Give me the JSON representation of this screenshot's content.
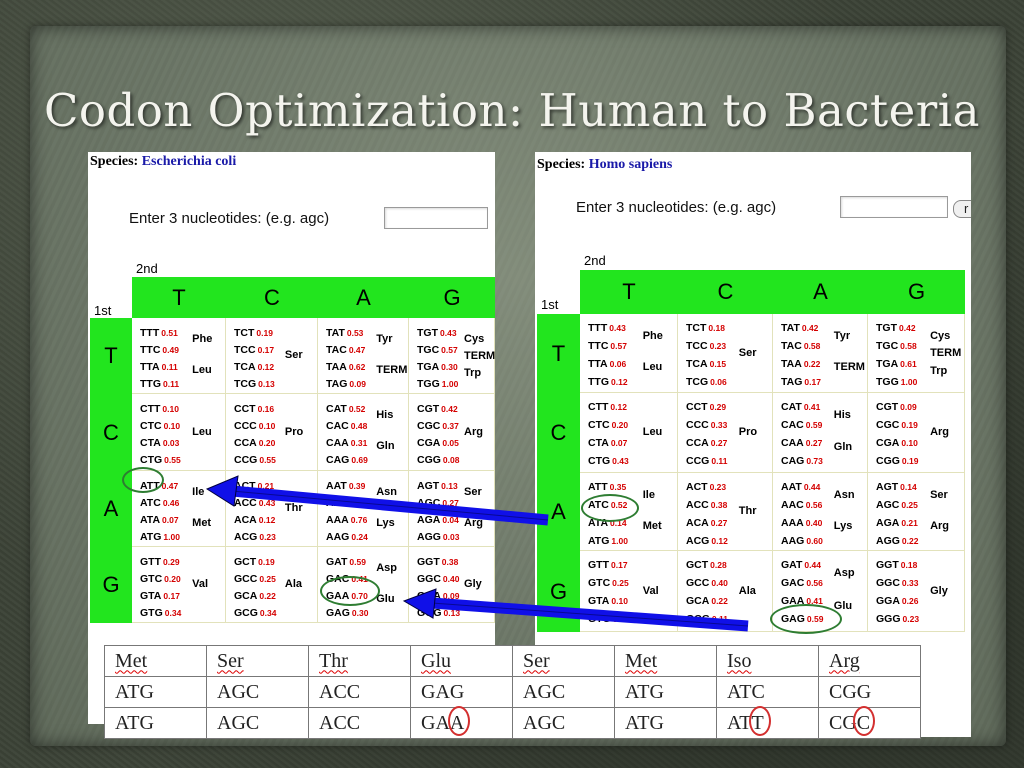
{
  "slide": {
    "title": "Codon Optimization: Human to Bacteria"
  },
  "ecoli": {
    "species_label": "Species:",
    "species_name": "Escherichia coli",
    "enter_label": "Enter 3 nucleotides:  (e.g. agc)",
    "second_label": "2nd",
    "first_label": "1st",
    "cols": [
      "T",
      "C",
      "A",
      "G"
    ],
    "rows": [
      "T",
      "C",
      "A",
      "G"
    ],
    "cells": [
      [
        {
          "codons": [
            [
              "TTT",
              "0.51"
            ],
            [
              "TTC",
              "0.49"
            ],
            [
              "TTA",
              "0.11"
            ],
            [
              "TTG",
              "0.11"
            ]
          ],
          "aa": [
            "Phe",
            "Leu"
          ]
        },
        {
          "codons": [
            [
              "TCT",
              "0.19"
            ],
            [
              "TCC",
              "0.17"
            ],
            [
              "TCA",
              "0.12"
            ],
            [
              "TCG",
              "0.13"
            ]
          ],
          "aa": [
            "Ser"
          ]
        },
        {
          "codons": [
            [
              "TAT",
              "0.53"
            ],
            [
              "TAC",
              "0.47"
            ],
            [
              "TAA",
              "0.62"
            ],
            [
              "TAG",
              "0.09"
            ]
          ],
          "aa": [
            "Tyr",
            "TERM"
          ]
        },
        {
          "codons": [
            [
              "TGT",
              "0.43"
            ],
            [
              "TGC",
              "0.57"
            ],
            [
              "TGA",
              "0.30"
            ],
            [
              "TGG",
              "1.00"
            ]
          ],
          "aa": [
            "Cys",
            "TERM",
            "Trp"
          ]
        }
      ],
      [
        {
          "codons": [
            [
              "CTT",
              "0.10"
            ],
            [
              "CTC",
              "0.10"
            ],
            [
              "CTA",
              "0.03"
            ],
            [
              "CTG",
              "0.55"
            ]
          ],
          "aa": [
            "Leu"
          ]
        },
        {
          "codons": [
            [
              "CCT",
              "0.16"
            ],
            [
              "CCC",
              "0.10"
            ],
            [
              "CCA",
              "0.20"
            ],
            [
              "CCG",
              "0.55"
            ]
          ],
          "aa": [
            "Pro"
          ]
        },
        {
          "codons": [
            [
              "CAT",
              "0.52"
            ],
            [
              "CAC",
              "0.48"
            ],
            [
              "CAA",
              "0.31"
            ],
            [
              "CAG",
              "0.69"
            ]
          ],
          "aa": [
            "His",
            "Gln"
          ]
        },
        {
          "codons": [
            [
              "CGT",
              "0.42"
            ],
            [
              "CGC",
              "0.37"
            ],
            [
              "CGA",
              "0.05"
            ],
            [
              "CGG",
              "0.08"
            ]
          ],
          "aa": [
            "Arg"
          ]
        }
      ],
      [
        {
          "codons": [
            [
              "ATT",
              "0.47"
            ],
            [
              "ATC",
              "0.46"
            ],
            [
              "ATA",
              "0.07"
            ],
            [
              "ATG",
              "1.00"
            ]
          ],
          "aa": [
            "Ile",
            "Met"
          ]
        },
        {
          "codons": [
            [
              "ACT",
              "0.21"
            ],
            [
              "ACC",
              "0.43"
            ],
            [
              "ACA",
              "0.12"
            ],
            [
              "ACG",
              "0.23"
            ]
          ],
          "aa": [
            "Thr"
          ]
        },
        {
          "codons": [
            [
              "AAT",
              "0.39"
            ],
            [
              "AAC",
              "0.61"
            ],
            [
              "AAA",
              "0.76"
            ],
            [
              "AAG",
              "0.24"
            ]
          ],
          "aa": [
            "Asn",
            "Lys"
          ]
        },
        {
          "codons": [
            [
              "AGT",
              "0.13"
            ],
            [
              "AGC",
              "0.27"
            ],
            [
              "AGA",
              "0.04"
            ],
            [
              "AGG",
              "0.03"
            ]
          ],
          "aa": [
            "Ser",
            "Arg"
          ]
        }
      ],
      [
        {
          "codons": [
            [
              "GTT",
              "0.29"
            ],
            [
              "GTC",
              "0.20"
            ],
            [
              "GTA",
              "0.17"
            ],
            [
              "GTG",
              "0.34"
            ]
          ],
          "aa": [
            "Val"
          ]
        },
        {
          "codons": [
            [
              "GCT",
              "0.19"
            ],
            [
              "GCC",
              "0.25"
            ],
            [
              "GCA",
              "0.22"
            ],
            [
              "GCG",
              "0.34"
            ]
          ],
          "aa": [
            "Ala"
          ]
        },
        {
          "codons": [
            [
              "GAT",
              "0.59"
            ],
            [
              "GAC",
              "0.41"
            ],
            [
              "GAA",
              "0.70"
            ],
            [
              "GAG",
              "0.30"
            ]
          ],
          "aa": [
            "Asp",
            "Glu"
          ]
        },
        {
          "codons": [
            [
              "GGT",
              "0.38"
            ],
            [
              "GGC",
              "0.40"
            ],
            [
              "GGA",
              "0.09"
            ],
            [
              "GGG",
              "0.13"
            ]
          ],
          "aa": [
            "Gly"
          ]
        }
      ]
    ]
  },
  "human": {
    "species_label": "Species:",
    "species_name": "Homo sapiens",
    "enter_label": "Enter 3 nucleotides:  (e.g. agc)",
    "submit_stub": "r",
    "second_label": "2nd",
    "first_label": "1st",
    "cols": [
      "T",
      "C",
      "A",
      "G"
    ],
    "rows": [
      "T",
      "C",
      "A",
      "G"
    ],
    "cells": [
      [
        {
          "codons": [
            [
              "TTT",
              "0.43"
            ],
            [
              "TTC",
              "0.57"
            ],
            [
              "TTA",
              "0.06"
            ],
            [
              "TTG",
              "0.12"
            ]
          ],
          "aa": [
            "Phe",
            "Leu"
          ]
        },
        {
          "codons": [
            [
              "TCT",
              "0.18"
            ],
            [
              "TCC",
              "0.23"
            ],
            [
              "TCA",
              "0.15"
            ],
            [
              "TCG",
              "0.06"
            ]
          ],
          "aa": [
            "Ser"
          ]
        },
        {
          "codons": [
            [
              "TAT",
              "0.42"
            ],
            [
              "TAC",
              "0.58"
            ],
            [
              "TAA",
              "0.22"
            ],
            [
              "TAG",
              "0.17"
            ]
          ],
          "aa": [
            "Tyr",
            "TERM"
          ]
        },
        {
          "codons": [
            [
              "TGT",
              "0.42"
            ],
            [
              "TGC",
              "0.58"
            ],
            [
              "TGA",
              "0.61"
            ],
            [
              "TGG",
              "1.00"
            ]
          ],
          "aa": [
            "Cys",
            "TERM",
            "Trp"
          ]
        }
      ],
      [
        {
          "codons": [
            [
              "CTT",
              "0.12"
            ],
            [
              "CTC",
              "0.20"
            ],
            [
              "CTA",
              "0.07"
            ],
            [
              "CTG",
              "0.43"
            ]
          ],
          "aa": [
            "Leu"
          ]
        },
        {
          "codons": [
            [
              "CCT",
              "0.29"
            ],
            [
              "CCC",
              "0.33"
            ],
            [
              "CCA",
              "0.27"
            ],
            [
              "CCG",
              "0.11"
            ]
          ],
          "aa": [
            "Pro"
          ]
        },
        {
          "codons": [
            [
              "CAT",
              "0.41"
            ],
            [
              "CAC",
              "0.59"
            ],
            [
              "CAA",
              "0.27"
            ],
            [
              "CAG",
              "0.73"
            ]
          ],
          "aa": [
            "His",
            "Gln"
          ]
        },
        {
          "codons": [
            [
              "CGT",
              "0.09"
            ],
            [
              "CGC",
              "0.19"
            ],
            [
              "CGA",
              "0.10"
            ],
            [
              "CGG",
              "0.19"
            ]
          ],
          "aa": [
            "Arg"
          ]
        }
      ],
      [
        {
          "codons": [
            [
              "ATT",
              "0.35"
            ],
            [
              "ATC",
              "0.52"
            ],
            [
              "ATA",
              "0.14"
            ],
            [
              "ATG",
              "1.00"
            ]
          ],
          "aa": [
            "Ile",
            "Met"
          ]
        },
        {
          "codons": [
            [
              "ACT",
              "0.23"
            ],
            [
              "ACC",
              "0.38"
            ],
            [
              "ACA",
              "0.27"
            ],
            [
              "ACG",
              "0.12"
            ]
          ],
          "aa": [
            "Thr"
          ]
        },
        {
          "codons": [
            [
              "AAT",
              "0.44"
            ],
            [
              "AAC",
              "0.56"
            ],
            [
              "AAA",
              "0.40"
            ],
            [
              "AAG",
              "0.60"
            ]
          ],
          "aa": [
            "Asn",
            "Lys"
          ]
        },
        {
          "codons": [
            [
              "AGT",
              "0.14"
            ],
            [
              "AGC",
              "0.25"
            ],
            [
              "AGA",
              "0.21"
            ],
            [
              "AGG",
              "0.22"
            ]
          ],
          "aa": [
            "Ser",
            "Arg"
          ]
        }
      ],
      [
        {
          "codons": [
            [
              "GTT",
              "0.17"
            ],
            [
              "GTC",
              "0.25"
            ],
            [
              "GTA",
              "0.10"
            ],
            [
              "GTG",
              "0.48"
            ]
          ],
          "aa": [
            "Val"
          ]
        },
        {
          "codons": [
            [
              "GCT",
              "0.28"
            ],
            [
              "GCC",
              "0.40"
            ],
            [
              "GCA",
              "0.22"
            ],
            [
              "GCG",
              "0.11"
            ]
          ],
          "aa": [
            "Ala"
          ]
        },
        {
          "codons": [
            [
              "GAT",
              "0.44"
            ],
            [
              "GAC",
              "0.56"
            ],
            [
              "GAA",
              "0.41"
            ],
            [
              "GAG",
              "0.59"
            ]
          ],
          "aa": [
            "Asp",
            "Glu"
          ]
        },
        {
          "codons": [
            [
              "GGT",
              "0.18"
            ],
            [
              "GGC",
              "0.33"
            ],
            [
              "GGA",
              "0.26"
            ],
            [
              "GGG",
              "0.23"
            ]
          ],
          "aa": [
            "Gly"
          ]
        }
      ]
    ]
  },
  "sequence_table": {
    "amino_acids": [
      "Met",
      "Ser",
      "Thr",
      "Glu",
      "Ser",
      "Met",
      "Iso",
      "Arg"
    ],
    "human_codons": [
      "ATG",
      "AGC",
      "ACC",
      "GAG",
      "AGC",
      "ATG",
      "ATC",
      "CGG"
    ],
    "bacteria_codons": [
      "ATG",
      "AGC",
      "ACC",
      "GAA",
      "AGC",
      "ATG",
      "ATT",
      "CGC"
    ]
  },
  "colors": {
    "header_green": "#22e51e",
    "frequency_red": "#d40000",
    "species_blue": "#1a1aa8",
    "arrow_blue": "#1010e8",
    "oval_green": "#2e7d32",
    "circle_red": "#d32f2f"
  }
}
